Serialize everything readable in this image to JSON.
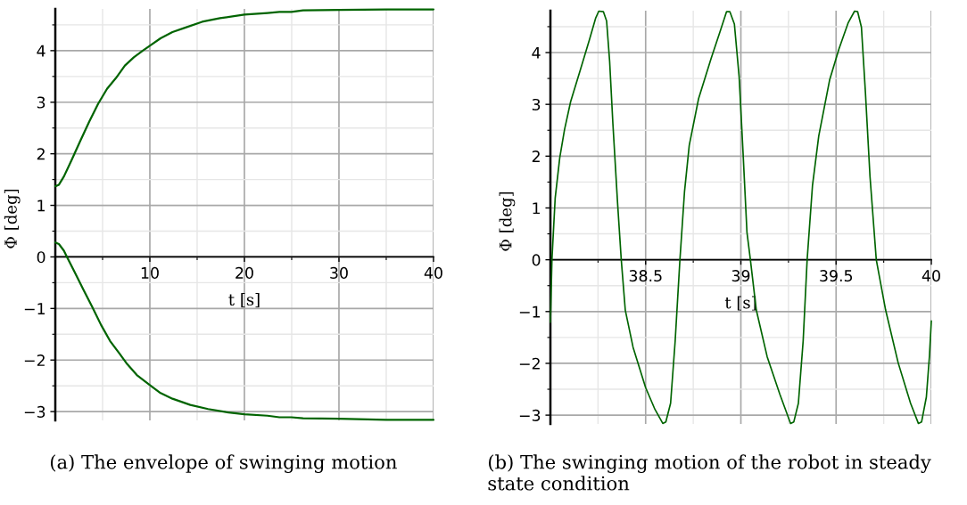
{
  "chart_data": [
    {
      "type": "line",
      "xlabel": "t [s]",
      "ylabel": "Φ [deg]",
      "annotations": [
        "(a) The envelope of swinging motion"
      ],
      "xlim": [
        0,
        40
      ],
      "ylim": [
        -3.17,
        4.81
      ],
      "xticks": [
        10,
        20,
        30,
        40
      ],
      "yticks": [
        {
          "value": -3,
          "label": "−3"
        },
        {
          "value": -2,
          "label": "−2"
        },
        {
          "value": -1,
          "label": "−1"
        },
        0,
        1,
        2,
        3,
        4
      ],
      "grid": true,
      "series": [
        {
          "color": "#006400",
          "x": [
            0,
            0.38,
            0.91,
            1.7,
            2.64,
            3.58,
            4.53,
            5.47,
            6.42,
            7.36,
            8.3,
            9.25,
            10.03,
            11.13,
            12.39,
            13.65,
            15.53,
            17.42,
            20,
            22.45,
            23.7,
            24.97,
            26.2,
            30,
            35,
            40
          ],
          "values": [
            1.37,
            1.4,
            1.56,
            1.87,
            2.25,
            2.62,
            2.97,
            3.26,
            3.47,
            3.71,
            3.87,
            4.0,
            4.1,
            4.24,
            4.36,
            4.44,
            4.56,
            4.63,
            4.7,
            4.73,
            4.75,
            4.75,
            4.78,
            4.79,
            4.8,
            4.8
          ]
        },
        {
          "color": "#006400",
          "x": [
            0,
            0.38,
            0.91,
            1.23,
            2.01,
            2.96,
            3.9,
            4.84,
            5.79,
            6.73,
            7.52,
            8.62,
            10.03,
            11.13,
            12.39,
            14.28,
            16.16,
            18.05,
            20,
            22.45,
            23.7,
            24.97,
            26.2,
            30,
            35,
            40
          ],
          "values": [
            0.28,
            0.25,
            0.12,
            0,
            -0.28,
            -0.63,
            -0.97,
            -1.32,
            -1.63,
            -1.86,
            -2.06,
            -2.29,
            -2.49,
            -2.64,
            -2.75,
            -2.87,
            -2.95,
            -3.01,
            -3.05,
            -3.08,
            -3.11,
            -3.11,
            -3.13,
            -3.14,
            -3.16,
            -3.16
          ]
        }
      ]
    },
    {
      "type": "line",
      "xlabel": "t [s]",
      "ylabel": "Φ [deg]",
      "annotations": [
        "(b) The swinging motion of the robot in steady state condition"
      ],
      "xlim": [
        38,
        40
      ],
      "ylim": [
        -3.17,
        4.81
      ],
      "xticks": [
        38.5,
        39,
        39.5,
        40
      ],
      "yticks": [
        {
          "value": -3,
          "label": "−3"
        },
        {
          "value": -2,
          "label": "−2"
        },
        {
          "value": -1,
          "label": "−1"
        },
        0,
        1,
        2,
        3,
        4
      ],
      "grid": true,
      "series": [
        {
          "color": "#006400",
          "x": [
            38.0,
            38.008,
            38.025,
            38.049,
            38.074,
            38.106,
            38.156,
            38.205,
            38.238,
            38.254,
            38.278,
            38.295,
            38.311,
            38.328,
            38.352,
            38.372,
            38.393,
            38.434,
            38.5,
            38.549,
            38.59,
            38.606,
            38.631,
            38.655,
            38.68,
            38.704,
            38.729,
            38.778,
            38.844,
            38.893,
            38.925,
            38.942,
            38.966,
            38.991,
            39.012,
            39.032,
            39.05,
            39.081,
            39.138,
            39.204,
            39.261,
            39.278,
            39.302,
            39.327,
            39.348,
            39.376,
            39.409,
            39.466,
            39.515,
            39.564,
            39.597,
            39.613,
            39.633,
            39.654,
            39.678,
            39.711,
            39.76,
            39.826,
            39.891,
            39.932,
            39.949,
            39.974,
            39.99,
            40.0
          ],
          "values": [
            -1.21,
            0,
            1.19,
            1.97,
            2.51,
            3.05,
            3.65,
            4.25,
            4.67,
            4.8,
            4.79,
            4.61,
            3.83,
            2.63,
            1.13,
            0,
            -0.97,
            -1.69,
            -2.47,
            -2.89,
            -3.16,
            -3.13,
            -2.77,
            -1.57,
            0,
            1.31,
            2.21,
            3.11,
            3.89,
            4.43,
            4.79,
            4.79,
            4.55,
            3.53,
            2.03,
            0.53,
            0,
            -0.97,
            -1.87,
            -2.59,
            -3.16,
            -3.13,
            -2.77,
            -1.57,
            0,
            1.43,
            2.39,
            3.47,
            4.07,
            4.58,
            4.8,
            4.79,
            4.49,
            3.23,
            1.61,
            0,
            -0.97,
            -1.99,
            -2.77,
            -3.16,
            -3.13,
            -2.65,
            -1.87,
            -1.18
          ]
        }
      ]
    }
  ]
}
